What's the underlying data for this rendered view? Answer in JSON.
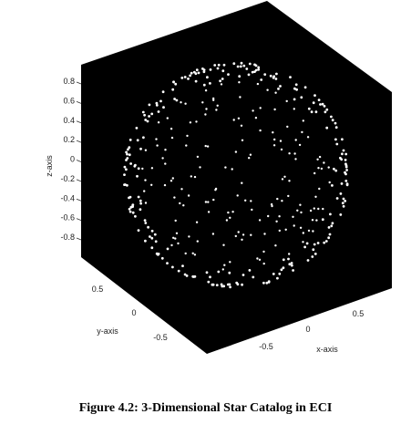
{
  "chart_data": {
    "type": "scatter",
    "projection": "3d",
    "title": "",
    "xlabel": "x-axis",
    "ylabel": "y-axis",
    "zlabel": "z-axis",
    "xlim": [
      -1,
      1
    ],
    "ylim": [
      -1,
      1
    ],
    "zlim": [
      -1,
      1
    ],
    "x_ticks": [
      "-0.5",
      "0",
      "0.5"
    ],
    "y_ticks": [
      "-0.5",
      "0",
      "0.5"
    ],
    "z_ticks": [
      "0.8",
      "0.6",
      "0.4",
      "0.2",
      "0",
      "-0.2",
      "-0.4",
      "-0.6",
      "-0.8"
    ],
    "z_tick_values": [
      0.8,
      0.6,
      0.4,
      0.2,
      0,
      -0.2,
      -0.4,
      -0.6,
      -0.8
    ],
    "grid": false,
    "background_color": "#000000",
    "marker_color": "#ffffff",
    "point_count": 540,
    "distribution": "points on the unit sphere"
  },
  "caption": "Figure 4.2: 3-Dimensional Star Catalog in ECI"
}
